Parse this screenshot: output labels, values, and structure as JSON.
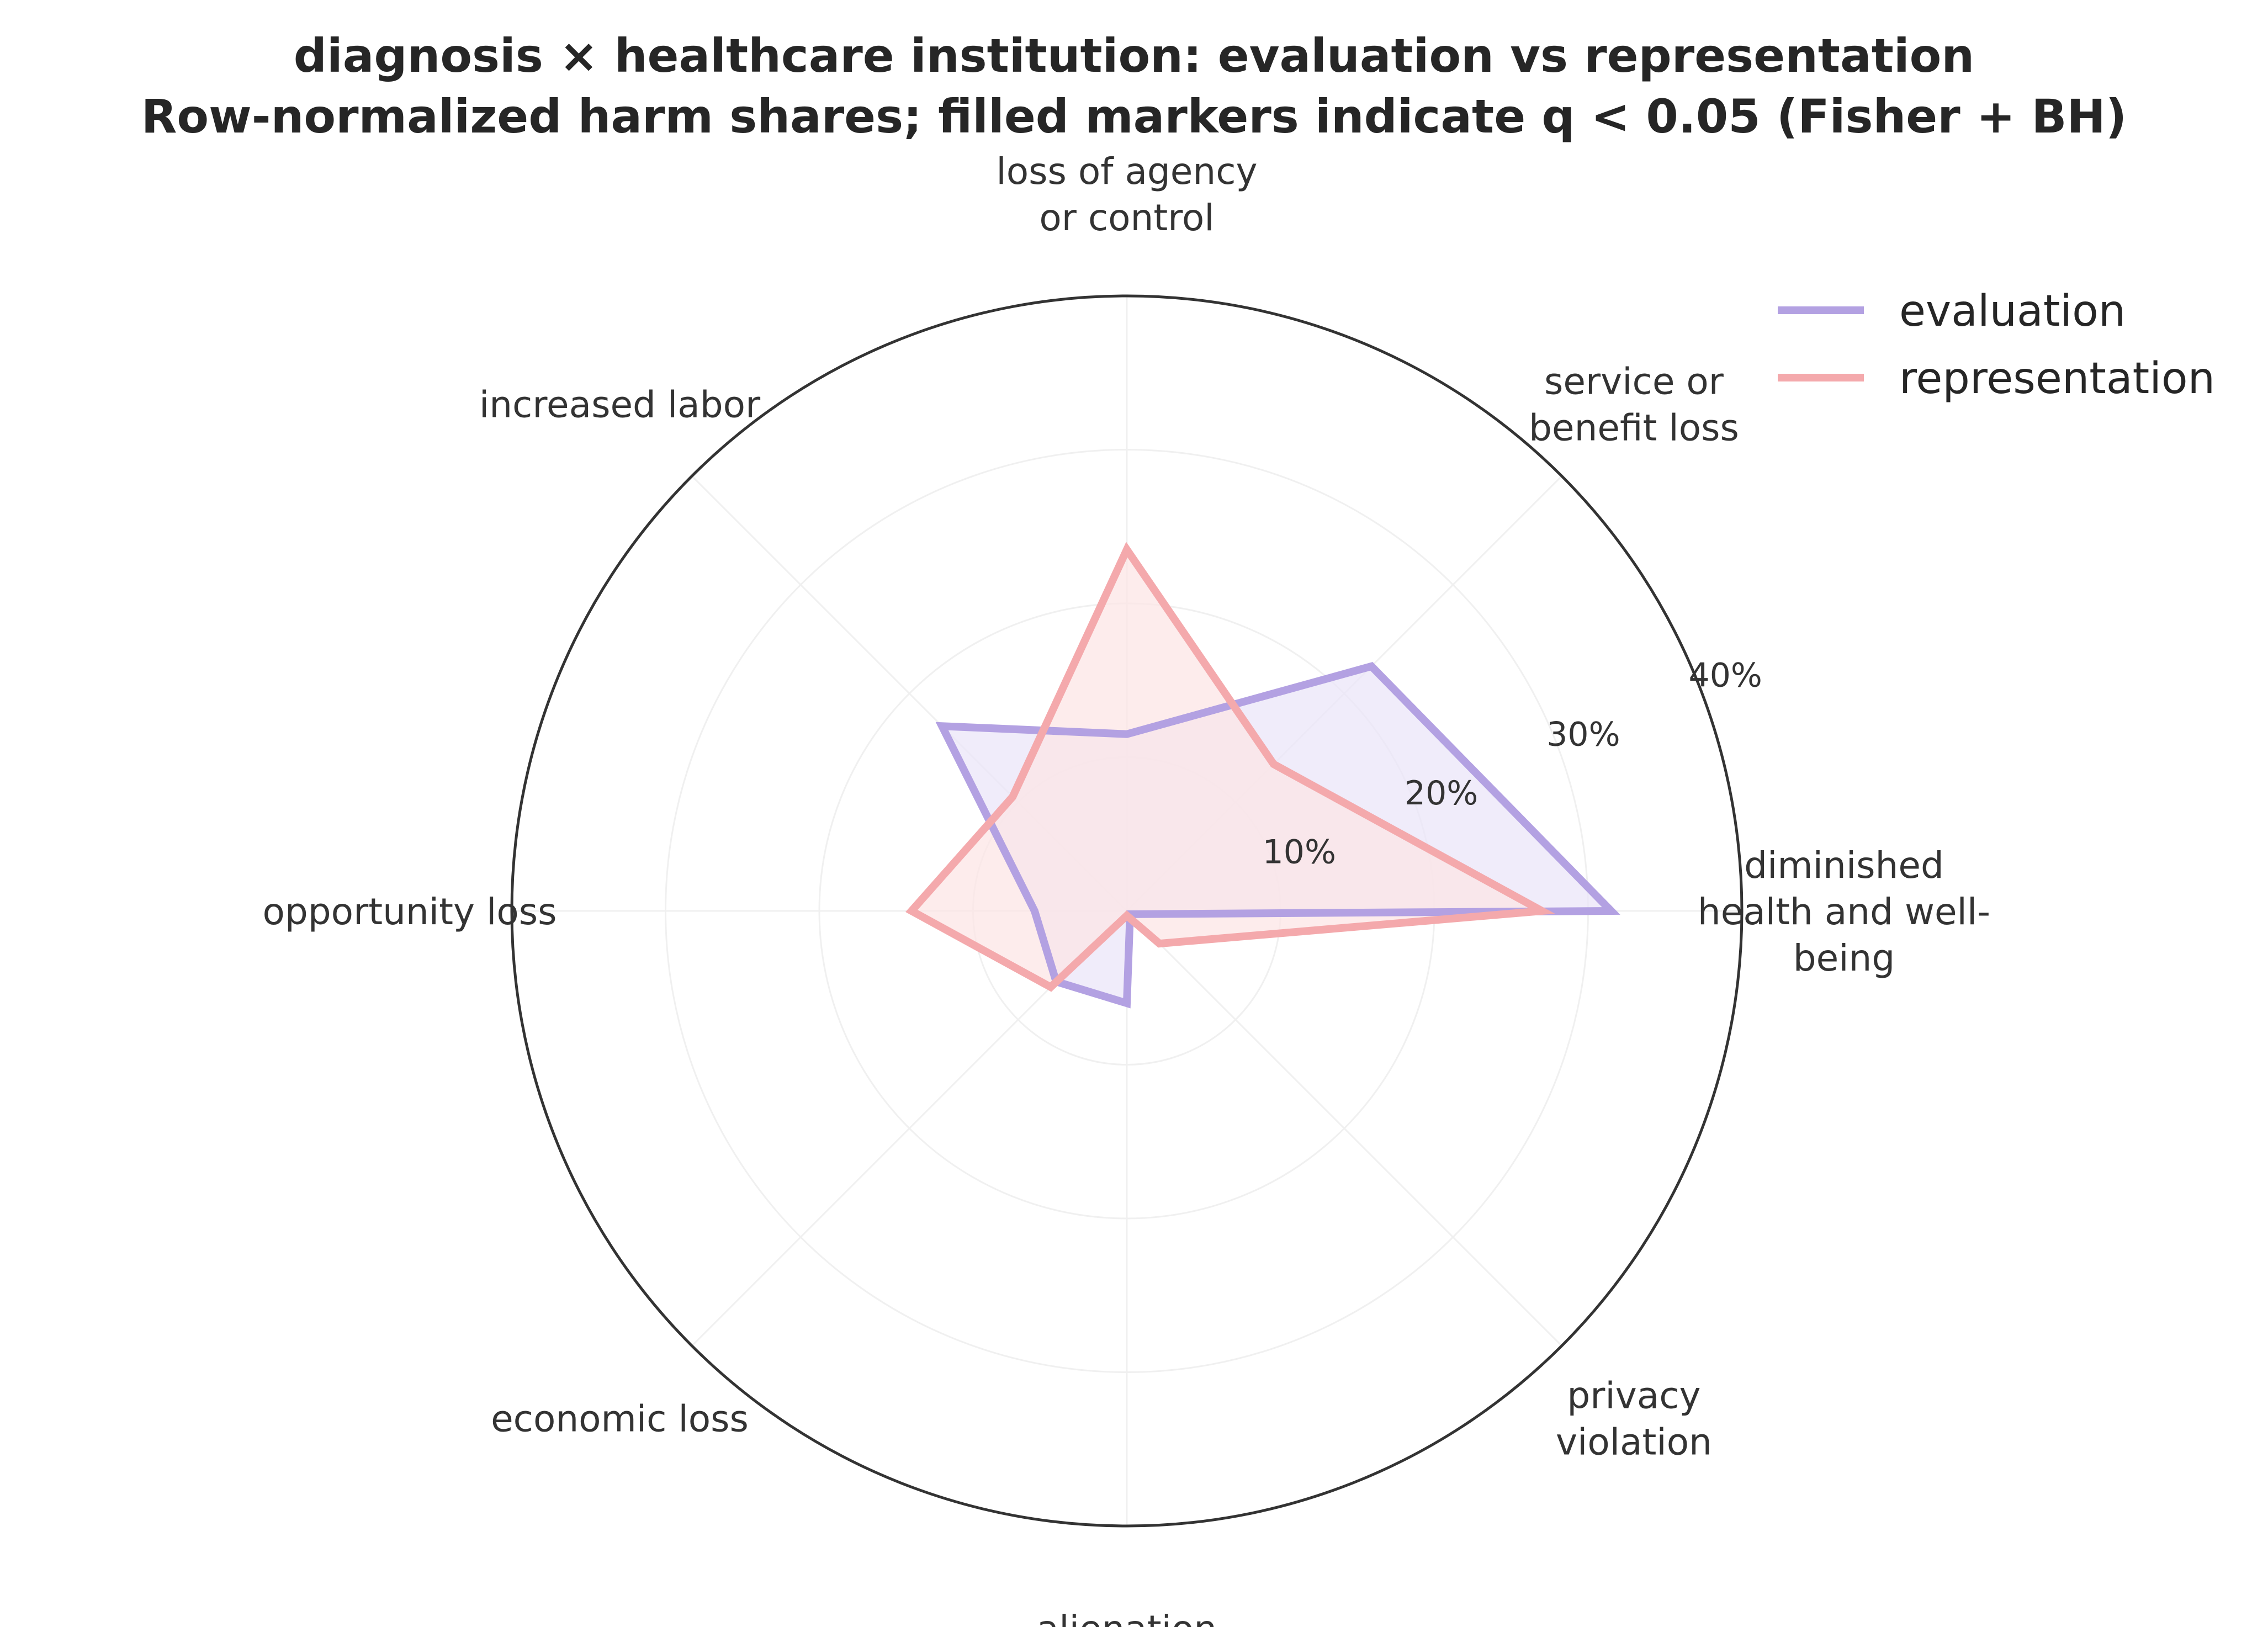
{
  "chart_data": {
    "type": "radar",
    "title": "diagnosis × healthcare institution: evaluation vs representation",
    "subtitle": "Row-normalized harm shares; filled markers indicate q < 0.05 (Fisher + BH)",
    "categories": [
      [
        "diminished",
        "health and well-",
        "being"
      ],
      [
        "service or",
        "benefit loss"
      ],
      [
        "loss of agency",
        "or control"
      ],
      [
        "increased labor"
      ],
      [
        "opportunity loss"
      ],
      [
        "economic loss"
      ],
      [
        "alienation"
      ],
      [
        "privacy",
        "violation"
      ]
    ],
    "series": [
      {
        "name": "evaluation",
        "values": [
          31.5,
          22.5,
          11.5,
          17.0,
          6.0,
          6.5,
          6.0,
          0.3
        ],
        "color": "#b3a1e2",
        "fill": "#ebe6f8"
      },
      {
        "name": "representation",
        "values": [
          27.0,
          13.5,
          23.5,
          10.5,
          14.0,
          7.0,
          0.3,
          3.0
        ],
        "color": "#f4a9ac",
        "fill": "#fce5e6"
      }
    ],
    "rlim": [
      0,
      40
    ],
    "rticks": [
      10,
      20,
      30,
      40
    ],
    "rtick_labels": [
      "10%",
      "20%",
      "30%",
      "40%"
    ],
    "grid": true,
    "legend_position": "top-right"
  }
}
